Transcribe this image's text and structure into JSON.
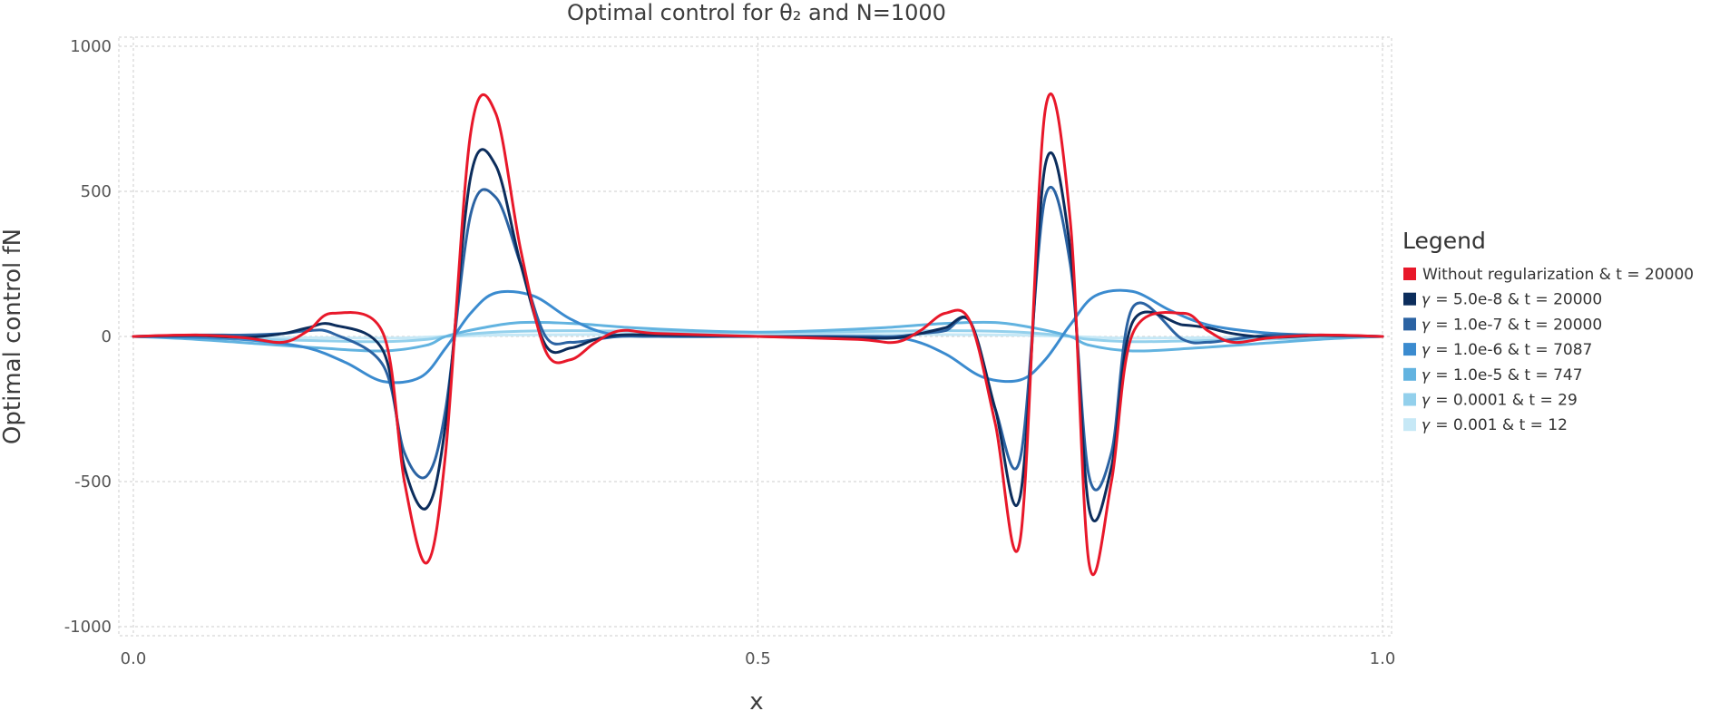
{
  "chart_data": {
    "type": "line",
    "title": "Optimal control for θ₂ and N=1000",
    "xlabel": "x",
    "ylabel": "Optimal control fN",
    "xlim": [
      0,
      1
    ],
    "ylim": [
      -1000,
      1000
    ],
    "x_ticks": [
      {
        "value": 0,
        "label": "0.0"
      },
      {
        "value": 0.5,
        "label": "0.5"
      },
      {
        "value": 1,
        "label": "1.0"
      }
    ],
    "y_ticks": [
      {
        "value": 1000,
        "label": "1000"
      },
      {
        "value": 500,
        "label": "500"
      },
      {
        "value": 0,
        "label": "0"
      },
      {
        "value": -500,
        "label": "-500"
      },
      {
        "value": -1000,
        "label": "-1000"
      }
    ],
    "grid": true,
    "legend": {
      "title": "Legend",
      "placement": "right"
    },
    "series": [
      {
        "name": "Without regularization & t = 20000",
        "color": "#e8182a",
        "x": [
          0,
          0.05,
          0.09,
          0.12,
          0.14,
          0.16,
          0.2,
          0.217,
          0.235,
          0.25,
          0.27,
          0.29,
          0.31,
          0.33,
          0.35,
          0.37,
          0.39,
          0.42,
          0.5,
          0.58,
          0.61,
          0.63,
          0.65,
          0.67,
          0.69,
          0.71,
          0.73,
          0.75,
          0.765,
          0.783,
          0.8,
          0.84,
          0.86,
          0.88,
          0.91,
          0.95,
          1
        ],
        "y": [
          0,
          5,
          -5,
          -20,
          20,
          80,
          10,
          -500,
          -780,
          -400,
          700,
          770,
          300,
          -50,
          -80,
          -20,
          20,
          10,
          0,
          -10,
          -20,
          20,
          80,
          50,
          -300,
          -700,
          780,
          400,
          -780,
          -500,
          10,
          80,
          20,
          -20,
          -5,
          5,
          0
        ]
      },
      {
        "name": "𝛾 = 5.0e-8 & t = 20000",
        "color": "#0c2d5c",
        "x": [
          0,
          0.05,
          0.09,
          0.12,
          0.14,
          0.16,
          0.2,
          0.217,
          0.235,
          0.25,
          0.27,
          0.29,
          0.31,
          0.33,
          0.35,
          0.37,
          0.39,
          0.42,
          0.5,
          0.58,
          0.61,
          0.63,
          0.65,
          0.67,
          0.69,
          0.71,
          0.73,
          0.75,
          0.765,
          0.783,
          0.8,
          0.84,
          0.86,
          0.88,
          0.91,
          0.95,
          1
        ],
        "y": [
          0,
          3,
          -3,
          10,
          30,
          40,
          -50,
          -450,
          -590,
          -300,
          550,
          590,
          250,
          -30,
          -40,
          -10,
          5,
          5,
          0,
          -5,
          -5,
          10,
          30,
          50,
          -250,
          -550,
          590,
          300,
          -590,
          -450,
          50,
          40,
          30,
          10,
          -3,
          3,
          0
        ]
      },
      {
        "name": "𝛾 = 1.0e-7 & t = 20000",
        "color": "#2b63a3",
        "x": [
          0,
          0.05,
          0.09,
          0.12,
          0.14,
          0.16,
          0.2,
          0.217,
          0.235,
          0.25,
          0.27,
          0.29,
          0.31,
          0.33,
          0.35,
          0.37,
          0.39,
          0.42,
          0.5,
          0.58,
          0.61,
          0.63,
          0.65,
          0.67,
          0.69,
          0.71,
          0.73,
          0.75,
          0.765,
          0.783,
          0.8,
          0.84,
          0.86,
          0.88,
          0.91,
          0.95,
          1
        ],
        "y": [
          0,
          5,
          5,
          10,
          20,
          10,
          -100,
          -400,
          -480,
          -250,
          420,
          480,
          250,
          0,
          -20,
          -10,
          0,
          0,
          0,
          0,
          0,
          10,
          20,
          50,
          -250,
          -420,
          480,
          250,
          -480,
          -400,
          100,
          -10,
          -20,
          -10,
          5,
          5,
          0
        ]
      },
      {
        "name": "𝛾 = 1.0e-6 & t = 7087",
        "color": "#3b8bcf",
        "x": [
          0,
          0.06,
          0.1,
          0.14,
          0.17,
          0.2,
          0.23,
          0.25,
          0.27,
          0.29,
          0.32,
          0.35,
          0.38,
          0.42,
          0.5,
          0.58,
          0.62,
          0.65,
          0.68,
          0.71,
          0.73,
          0.75,
          0.77,
          0.8,
          0.83,
          0.86,
          0.9,
          0.94,
          1
        ],
        "y": [
          0,
          -5,
          -15,
          -40,
          -90,
          -155,
          -140,
          -40,
          80,
          150,
          140,
          60,
          10,
          0,
          0,
          0,
          -10,
          -60,
          -140,
          -150,
          -80,
          40,
          140,
          155,
          90,
          40,
          15,
          5,
          0
        ]
      },
      {
        "name": "𝛾 = 1.0e-5 & t = 747",
        "color": "#62b3e0",
        "x": [
          0,
          0.05,
          0.1,
          0.15,
          0.2,
          0.235,
          0.25,
          0.28,
          0.31,
          0.35,
          0.4,
          0.45,
          0.5,
          0.55,
          0.6,
          0.65,
          0.69,
          0.72,
          0.75,
          0.765,
          0.8,
          0.85,
          0.9,
          0.95,
          1
        ],
        "y": [
          0,
          -10,
          -25,
          -40,
          -50,
          -30,
          0,
          30,
          48,
          45,
          30,
          20,
          15,
          20,
          30,
          45,
          48,
          30,
          0,
          -30,
          -50,
          -40,
          -25,
          -10,
          0
        ]
      },
      {
        "name": "𝛾 = 0.0001 & t = 29",
        "color": "#93d0ec",
        "x": [
          0,
          0.05,
          0.1,
          0.15,
          0.2,
          0.235,
          0.25,
          0.28,
          0.31,
          0.35,
          0.4,
          0.45,
          0.5,
          0.55,
          0.6,
          0.65,
          0.69,
          0.72,
          0.75,
          0.765,
          0.8,
          0.85,
          0.9,
          0.95,
          1
        ],
        "y": [
          0,
          -5,
          -10,
          -15,
          -18,
          -10,
          0,
          12,
          18,
          20,
          18,
          15,
          14,
          15,
          18,
          20,
          18,
          12,
          0,
          -10,
          -18,
          -15,
          -10,
          -5,
          0
        ]
      },
      {
        "name": "𝛾 = 0.001 & t = 12",
        "color": "#c6e8f6",
        "x": [
          0,
          0.1,
          0.2,
          0.25,
          0.3,
          0.4,
          0.5,
          0.6,
          0.7,
          0.75,
          0.8,
          0.9,
          1
        ],
        "y": [
          0,
          -3,
          -6,
          0,
          5,
          7,
          8,
          7,
          5,
          0,
          -6,
          -3,
          0
        ]
      }
    ]
  }
}
